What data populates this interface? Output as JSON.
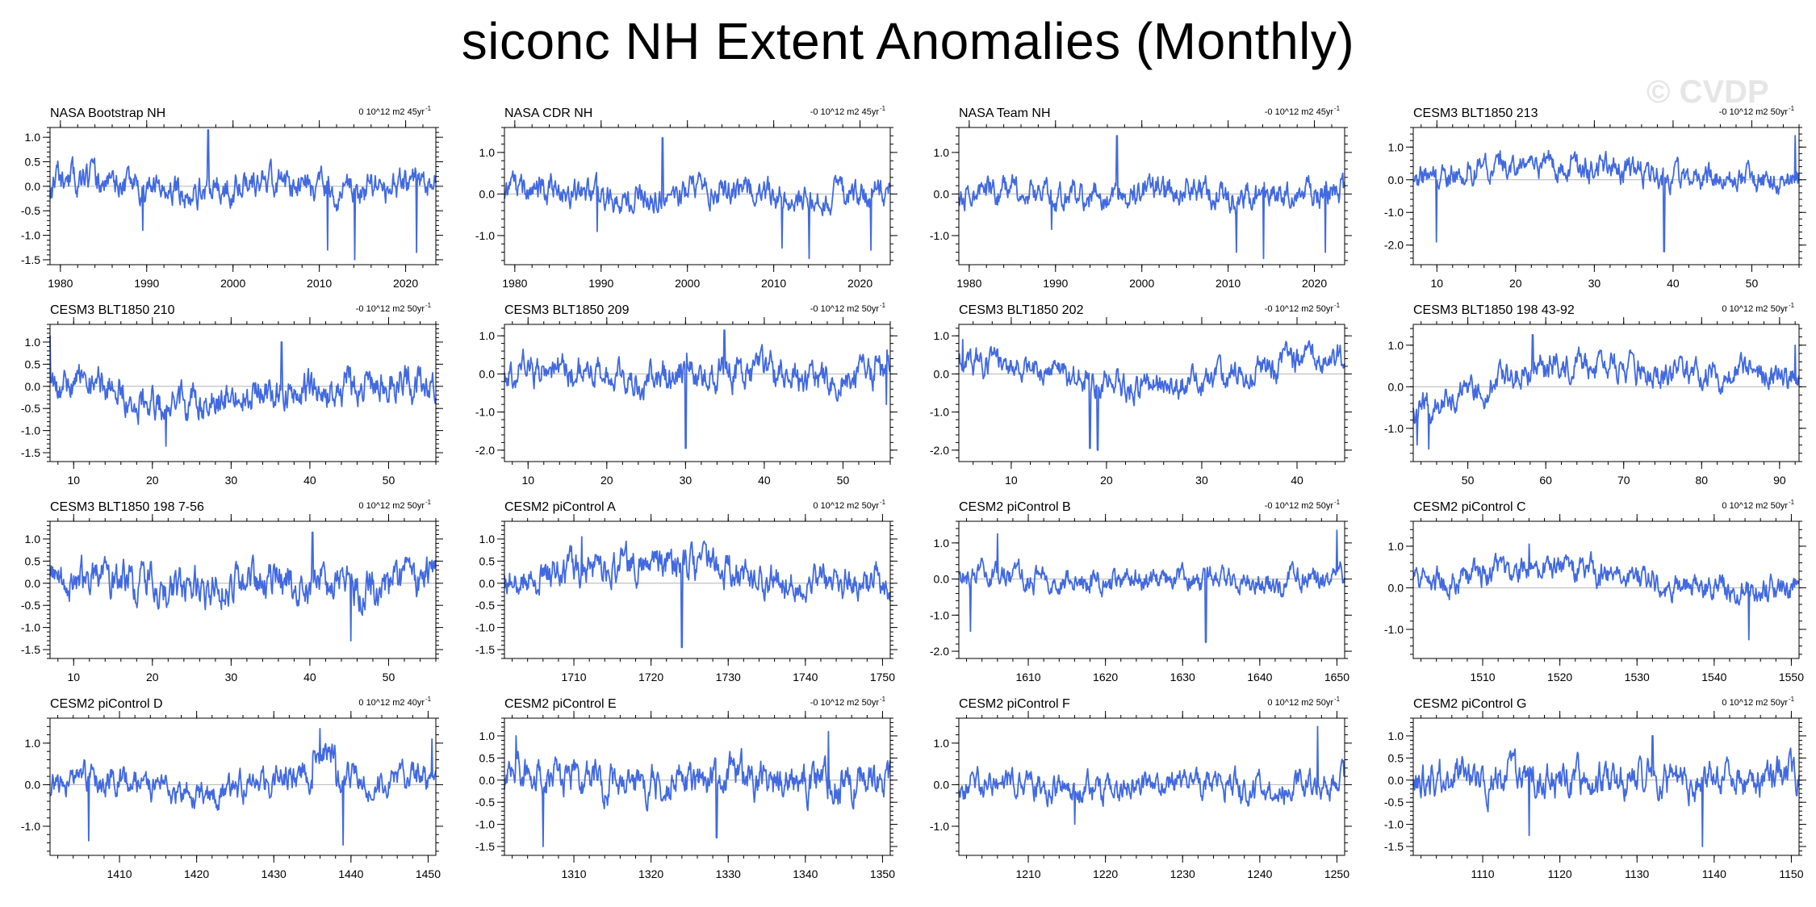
{
  "title": "siconc NH Extent Anomalies (Monthly)",
  "watermark": "© CVDP",
  "chart_data": [
    {
      "type": "line",
      "title": "NASA Bootstrap NH",
      "trend": "0 10^12 m2 45yr",
      "xlim": [
        1978.8,
        2023.5
      ],
      "xticks": [
        1980,
        1990,
        2000,
        2010,
        2020
      ],
      "ylim": [
        -1.6,
        1.2
      ],
      "yticks": [
        -1.5,
        -1.0,
        -0.5,
        0.0,
        0.5,
        1.0
      ],
      "yticklabels": [
        "-1.5",
        "-1.0",
        "-0.5",
        "0.0",
        "0.5",
        "1.0"
      ],
      "seed": 11,
      "shape": "flat",
      "amp": 0.28,
      "spikes": [
        [
          0.41,
          1.15
        ],
        [
          0.72,
          -1.3
        ],
        [
          0.79,
          -1.5
        ],
        [
          0.95,
          -1.35
        ],
        [
          0.24,
          -0.9
        ]
      ],
      "color": "#4169e1"
    },
    {
      "type": "line",
      "title": "NASA CDR NH",
      "trend": "-0 10^12 m2 45yr",
      "xlim": [
        1978.8,
        2023.5
      ],
      "xticks": [
        1980,
        1990,
        2000,
        2010,
        2020
      ],
      "ylim": [
        -1.7,
        1.6
      ],
      "yticks": [
        -1.0,
        0.0,
        1.0
      ],
      "yticklabels": [
        "-1.0",
        "0.0",
        "1.0"
      ],
      "seed": 12,
      "shape": "flat",
      "amp": 0.3,
      "spikes": [
        [
          0.41,
          1.35
        ],
        [
          0.72,
          -1.3
        ],
        [
          0.79,
          -1.55
        ],
        [
          0.95,
          -1.35
        ],
        [
          0.24,
          -0.9
        ]
      ],
      "color": "#4169e1"
    },
    {
      "type": "line",
      "title": "NASA Team NH",
      "trend": "-0 10^12 m2 45yr",
      "xlim": [
        1978.8,
        2023.5
      ],
      "xticks": [
        1980,
        1990,
        2000,
        2010,
        2020
      ],
      "ylim": [
        -1.7,
        1.6
      ],
      "yticks": [
        -1.0,
        0.0,
        1.0
      ],
      "yticklabels": [
        "-1.0",
        "0.0",
        "1.0"
      ],
      "seed": 13,
      "shape": "flat",
      "amp": 0.3,
      "spikes": [
        [
          0.41,
          1.4
        ],
        [
          0.72,
          -1.4
        ],
        [
          0.79,
          -1.55
        ],
        [
          0.95,
          -1.4
        ],
        [
          0.24,
          -0.85
        ]
      ],
      "color": "#4169e1"
    },
    {
      "type": "line",
      "title": "CESM3 BLT1850 213",
      "trend": "-0 10^12 m2 50yr",
      "xlim": [
        7,
        56
      ],
      "xticks": [
        10,
        20,
        30,
        40,
        50
      ],
      "ylim": [
        -2.6,
        1.6
      ],
      "yticks": [
        -2.0,
        -1.0,
        0.0,
        1.0
      ],
      "yticklabels": [
        "-2.0",
        "-1.0",
        "0.0",
        "1.0"
      ],
      "seed": 14,
      "shape": "hump",
      "amp": 0.35,
      "spikes": [
        [
          0.65,
          -2.2
        ],
        [
          0.06,
          -1.9
        ],
        [
          0.99,
          1.35
        ]
      ],
      "color": "#4169e1"
    },
    {
      "type": "line",
      "title": "CESM3 BLT1850 210",
      "trend": "-0 10^12 m2 50yr",
      "xlim": [
        7,
        56
      ],
      "xticks": [
        10,
        20,
        30,
        40,
        50
      ],
      "ylim": [
        -1.7,
        1.4
      ],
      "yticks": [
        -1.5,
        -1.0,
        -0.5,
        0.0,
        0.5,
        1.0
      ],
      "yticklabels": [
        "-1.5",
        "-1.0",
        "-0.5",
        "0.0",
        "0.5",
        "1.0"
      ],
      "seed": 15,
      "shape": "dip",
      "amp": 0.35,
      "spikes": [
        [
          0.0,
          1.15
        ],
        [
          0.3,
          -1.35
        ],
        [
          0.6,
          1.0
        ]
      ],
      "color": "#4169e1"
    },
    {
      "type": "line",
      "title": "CESM3 BLT1850 209",
      "trend": "-0 10^12 m2 50yr",
      "xlim": [
        7,
        56
      ],
      "xticks": [
        10,
        20,
        30,
        40,
        50
      ],
      "ylim": [
        -2.3,
        1.3
      ],
      "yticks": [
        -2.0,
        -1.0,
        0.0,
        1.0
      ],
      "yticklabels": [
        "-2.0",
        "-1.0",
        "0.0",
        "1.0"
      ],
      "seed": 16,
      "shape": "flat",
      "amp": 0.38,
      "spikes": [
        [
          0.47,
          -1.95
        ],
        [
          0.57,
          1.15
        ],
        [
          0.99,
          -0.8
        ]
      ],
      "color": "#4169e1"
    },
    {
      "type": "line",
      "title": "CESM3 BLT1850 202",
      "trend": "-0 10^12 m2 50yr",
      "xlim": [
        4.5,
        45
      ],
      "xticks": [
        10,
        20,
        30,
        40
      ],
      "ylim": [
        -2.3,
        1.3
      ],
      "yticks": [
        -2.0,
        -1.0,
        0.0,
        1.0
      ],
      "yticklabels": [
        "-2.0",
        "-1.0",
        "0.0",
        "1.0"
      ],
      "seed": 17,
      "shape": "wave",
      "amp": 0.33,
      "spikes": [
        [
          0.34,
          -1.95
        ],
        [
          0.36,
          -2.0
        ],
        [
          0.01,
          0.9
        ]
      ],
      "color": "#4169e1"
    },
    {
      "type": "line",
      "title": "CESM3 BLT1850 198 43-92",
      "trend": "0 10^12 m2 50yr",
      "xlim": [
        43,
        92.5
      ],
      "xticks": [
        50,
        60,
        70,
        80,
        90
      ],
      "ylim": [
        -1.8,
        1.5
      ],
      "yticks": [
        -1.0,
        0.0,
        1.0
      ],
      "yticklabels": [
        "-1.0",
        "0.0",
        "1.0"
      ],
      "seed": 18,
      "shape": "rise",
      "amp": 0.3,
      "spikes": [
        [
          0.01,
          -1.4
        ],
        [
          0.04,
          -1.5
        ],
        [
          0.31,
          1.25
        ],
        [
          0.99,
          1.0
        ]
      ],
      "color": "#4169e1"
    },
    {
      "type": "line",
      "title": "CESM3 BLT1850 198 7-56",
      "trend": "0 10^12 m2 50yr",
      "xlim": [
        7,
        56
      ],
      "xticks": [
        10,
        20,
        30,
        40,
        50
      ],
      "ylim": [
        -1.7,
        1.4
      ],
      "yticks": [
        -1.5,
        -1.0,
        -0.5,
        0.0,
        0.5,
        1.0
      ],
      "yticklabels": [
        "-1.5",
        "-1.0",
        "-0.5",
        "0.0",
        "0.5",
        "1.0"
      ],
      "seed": 19,
      "shape": "flat",
      "amp": 0.38,
      "spikes": [
        [
          0.68,
          1.15
        ],
        [
          0.78,
          -1.3
        ]
      ],
      "color": "#4169e1"
    },
    {
      "type": "line",
      "title": "CESM2 piControl A",
      "trend": "0 10^12 m2 50yr",
      "xlim": [
        1701,
        1751
      ],
      "xticks": [
        1710,
        1720,
        1730,
        1740,
        1750
      ],
      "ylim": [
        -1.7,
        1.4
      ],
      "yticks": [
        -1.5,
        -1.0,
        -0.5,
        0.0,
        0.5,
        1.0
      ],
      "yticklabels": [
        "-1.5",
        "-1.0",
        "-0.5",
        "0.0",
        "0.5",
        "1.0"
      ],
      "seed": 20,
      "shape": "hump",
      "amp": 0.33,
      "spikes": [
        [
          0.46,
          -1.45
        ],
        [
          0.2,
          1.05
        ]
      ],
      "color": "#4169e1"
    },
    {
      "type": "line",
      "title": "CESM2 piControl B",
      "trend": "-0 10^12 m2 50yr",
      "xlim": [
        1601,
        1651
      ],
      "xticks": [
        1610,
        1620,
        1630,
        1640,
        1650
      ],
      "ylim": [
        -2.2,
        1.6
      ],
      "yticks": [
        -2.0,
        -1.0,
        0.0,
        1.0
      ],
      "yticklabels": [
        "-2.0",
        "-1.0",
        "0.0",
        "1.0"
      ],
      "seed": 21,
      "shape": "flat",
      "amp": 0.3,
      "spikes": [
        [
          0.64,
          -1.75
        ],
        [
          0.03,
          -1.45
        ],
        [
          0.98,
          1.35
        ],
        [
          0.1,
          1.25
        ]
      ],
      "color": "#4169e1"
    },
    {
      "type": "line",
      "title": "CESM2 piControl C",
      "trend": "0 10^12 m2 50yr",
      "xlim": [
        1501,
        1551
      ],
      "xticks": [
        1510,
        1520,
        1530,
        1540,
        1550
      ],
      "ylim": [
        -1.7,
        1.6
      ],
      "yticks": [
        -1.0,
        0.0,
        1.0
      ],
      "yticklabels": [
        "-1.0",
        "0.0",
        "1.0"
      ],
      "seed": 22,
      "shape": "hump",
      "amp": 0.28,
      "spikes": [
        [
          0.87,
          -1.25
        ],
        [
          0.3,
          1.05
        ]
      ],
      "color": "#4169e1"
    },
    {
      "type": "line",
      "title": "CESM2 piControl D",
      "trend": "0 10^12 m2 40yr",
      "xlim": [
        1401,
        1451
      ],
      "xticks": [
        1410,
        1420,
        1430,
        1440,
        1450
      ],
      "ylim": [
        -1.7,
        1.6
      ],
      "yticks": [
        -1.0,
        0.0,
        1.0
      ],
      "yticklabels": [
        "-1.0",
        "0.0",
        "1.0"
      ],
      "seed": 23,
      "shape": "step",
      "amp": 0.3,
      "spikes": [
        [
          0.1,
          -1.35
        ],
        [
          0.7,
          1.35
        ],
        [
          0.76,
          -1.45
        ],
        [
          0.99,
          1.1
        ]
      ],
      "color": "#4169e1"
    },
    {
      "type": "line",
      "title": "CESM2 piControl E",
      "trend": "-0 10^12 m2 50yr",
      "xlim": [
        1301,
        1351
      ],
      "xticks": [
        1310,
        1320,
        1330,
        1340,
        1350
      ],
      "ylim": [
        -1.7,
        1.4
      ],
      "yticks": [
        -1.5,
        -1.0,
        -0.5,
        0.0,
        0.5,
        1.0
      ],
      "yticklabels": [
        "-1.5",
        "-1.0",
        "-0.5",
        "0.0",
        "0.5",
        "1.0"
      ],
      "seed": 24,
      "shape": "flat",
      "amp": 0.36,
      "spikes": [
        [
          0.1,
          -1.5
        ],
        [
          0.03,
          1.0
        ],
        [
          0.55,
          -1.3
        ],
        [
          0.84,
          1.1
        ]
      ],
      "color": "#4169e1"
    },
    {
      "type": "line",
      "title": "CESM2 piControl F",
      "trend": "0 10^12 m2 50yr",
      "xlim": [
        1201,
        1251
      ],
      "xticks": [
        1210,
        1220,
        1230,
        1240,
        1250
      ],
      "ylim": [
        -1.7,
        1.6
      ],
      "yticks": [
        -1.0,
        0.0,
        1.0
      ],
      "yticklabels": [
        "-1.0",
        "0.0",
        "1.0"
      ],
      "seed": 25,
      "shape": "flat",
      "amp": 0.3,
      "spikes": [
        [
          0.93,
          1.4
        ],
        [
          0.3,
          -0.95
        ]
      ],
      "color": "#4169e1"
    },
    {
      "type": "line",
      "title": "CESM2 piControl G",
      "trend": "0 10^12 m2 50yr",
      "xlim": [
        1101,
        1151
      ],
      "xticks": [
        1110,
        1120,
        1130,
        1140,
        1150
      ],
      "ylim": [
        -1.7,
        1.4
      ],
      "yticks": [
        -1.5,
        -1.0,
        -0.5,
        0.0,
        0.5,
        1.0
      ],
      "yticklabels": [
        "-1.5",
        "-1.0",
        "-0.5",
        "0.0",
        "0.5",
        "1.0"
      ],
      "seed": 26,
      "shape": "flat",
      "amp": 0.35,
      "spikes": [
        [
          0.75,
          -1.5
        ],
        [
          0.3,
          -1.25
        ],
        [
          0.62,
          1.0
        ]
      ],
      "color": "#4169e1"
    }
  ]
}
